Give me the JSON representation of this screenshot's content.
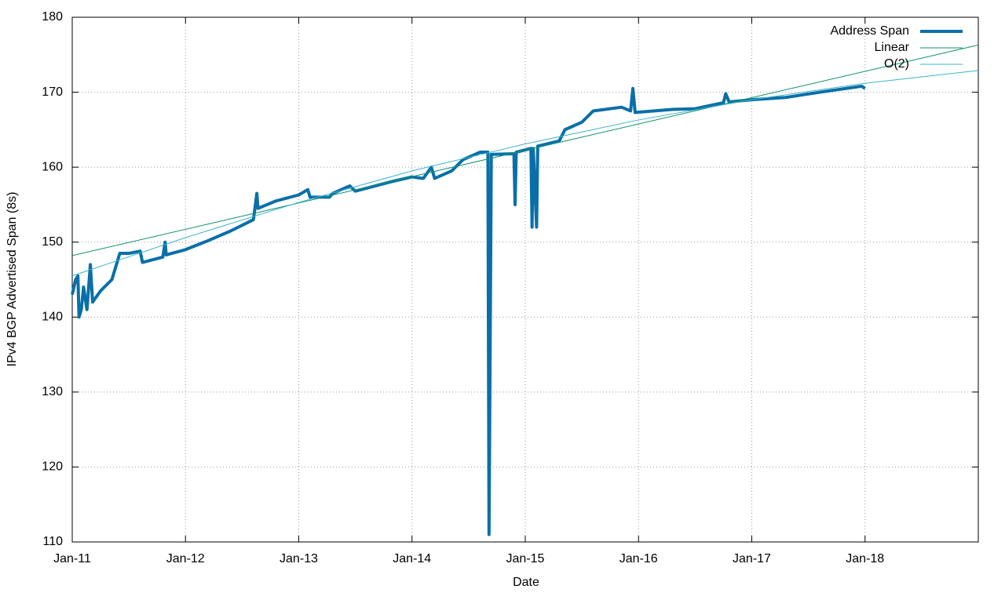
{
  "chart_data": {
    "type": "line",
    "x_label": "Date",
    "y_label": "IPv4 BGP Advertised Span (8s)",
    "xlim": [
      2011,
      2019
    ],
    "ylim": [
      110,
      180
    ],
    "xticks": [
      {
        "value": 2011,
        "label": "Jan-11"
      },
      {
        "value": 2012,
        "label": "Jan-12"
      },
      {
        "value": 2013,
        "label": "Jan-13"
      },
      {
        "value": 2014,
        "label": "Jan-14"
      },
      {
        "value": 2015,
        "label": "Jan-15"
      },
      {
        "value": 2016,
        "label": "Jan-16"
      },
      {
        "value": 2017,
        "label": "Jan-17"
      },
      {
        "value": 2018,
        "label": "Jan-18"
      }
    ],
    "yticks": [
      110,
      120,
      130,
      140,
      150,
      160,
      170,
      180
    ],
    "grid": true,
    "legend": "top-right",
    "series": [
      {
        "name": "Address Span",
        "color": "#0a6fa8",
        "width": 4,
        "x": [
          2011.0,
          2011.03,
          2011.05,
          2011.06,
          2011.08,
          2011.1,
          2011.13,
          2011.16,
          2011.18,
          2011.25,
          2011.35,
          2011.42,
          2011.5,
          2011.6,
          2011.62,
          2011.8,
          2011.82,
          2011.83,
          2012.0,
          2012.2,
          2012.4,
          2012.6,
          2012.63,
          2012.64,
          2012.8,
          2013.0,
          2013.08,
          2013.1,
          2013.27,
          2013.3,
          2013.45,
          2013.5,
          2013.8,
          2014.0,
          2014.1,
          2014.17,
          2014.2,
          2014.35,
          2014.45,
          2014.6,
          2014.67,
          2014.68,
          2014.7,
          2014.9,
          2014.91,
          2014.92,
          2015.05,
          2015.06,
          2015.07,
          2015.1,
          2015.11,
          2015.3,
          2015.35,
          2015.5,
          2015.6,
          2015.85,
          2015.93,
          2015.95,
          2015.97,
          2016.3,
          2016.5,
          2016.75,
          2016.77,
          2016.8,
          2017.0,
          2017.3,
          2017.6,
          2017.97,
          2018.0
        ],
        "values": [
          143,
          145,
          145.5,
          140,
          141,
          144,
          141,
          147,
          142,
          143.5,
          145,
          148.5,
          148.5,
          148.8,
          147.3,
          148,
          150,
          148.3,
          149,
          150.2,
          151.5,
          153,
          156.5,
          154.5,
          155.5,
          156.3,
          157,
          156,
          156,
          156.5,
          157.5,
          156.8,
          158,
          158.7,
          158.5,
          160,
          158.5,
          159.5,
          161,
          162,
          162,
          111,
          161.7,
          161.8,
          155,
          162,
          162.5,
          152,
          162.5,
          152,
          162.8,
          163.5,
          165,
          166,
          167.5,
          168,
          167.5,
          170.5,
          167.3,
          167.7,
          167.8,
          168.6,
          169.8,
          168.7,
          169,
          169.3,
          170,
          170.8,
          170.5
        ]
      },
      {
        "name": "Linear",
        "color": "#0f9270",
        "width": 1,
        "x": [
          2011,
          2019
        ],
        "values": [
          148.2,
          176.3
        ]
      },
      {
        "name": "O(2)",
        "color": "#3fb3cc",
        "width": 1,
        "x": [
          2011,
          2012,
          2013,
          2014,
          2015,
          2016,
          2017,
          2018,
          2019
        ],
        "values": [
          145.5,
          150.6,
          155.3,
          159.5,
          163.1,
          166.3,
          169,
          171.2,
          172.9
        ]
      }
    ]
  }
}
